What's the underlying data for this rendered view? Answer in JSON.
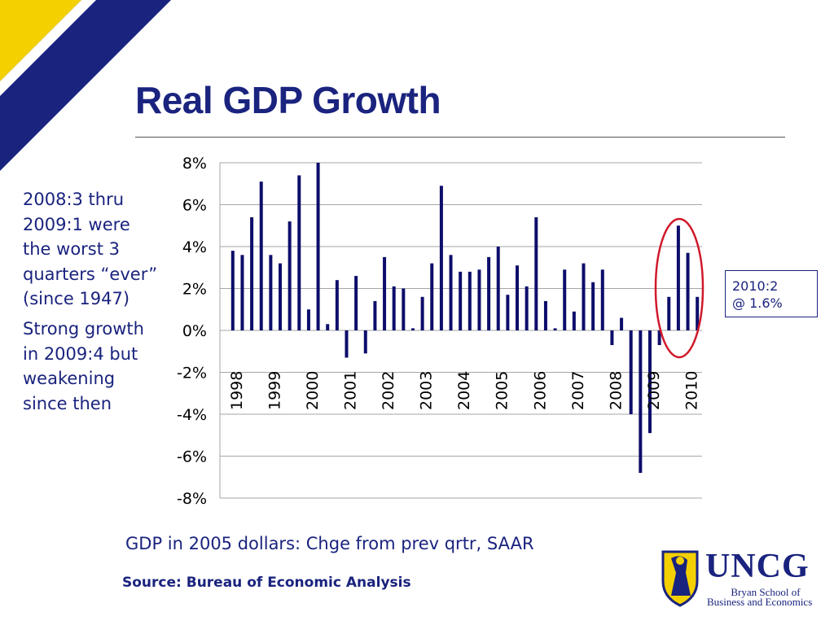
{
  "slide": {
    "title": "Real GDP Growth",
    "notes": [
      "2008:3 thru 2009:1 were the worst 3 quarters “ever” (since 1947)",
      "Strong growth in 2009:4 but weakening since then"
    ],
    "callout": [
      "2010:2",
      "@ 1.6%"
    ],
    "subtitle": "GDP in 2005 dollars: Chge from prev qrtr, SAAR",
    "source": "Source:  Bureau of Economic Analysis",
    "logo": {
      "name": "UNCG",
      "school_line1": "Bryan School of",
      "school_line2": "Business and Economics"
    },
    "colors": {
      "navy": "#1a237e",
      "gold": "#f5d000",
      "bar": "#0d0d6b",
      "highlight": "#d0192b",
      "grid": "#a6a6a6"
    }
  },
  "chart_data": {
    "type": "bar",
    "title": "",
    "xlabel": "",
    "ylabel": "",
    "ylim": [
      -8,
      8
    ],
    "yticks": [
      8,
      6,
      4,
      2,
      0,
      -2,
      -4,
      -6,
      -8
    ],
    "ytick_labels": [
      "8%",
      "6%",
      "4%",
      "2%",
      "0%",
      "-2%",
      "-4%",
      "-6%",
      "-8%"
    ],
    "grid": true,
    "year_labels": [
      "1998",
      "1999",
      "2000",
      "2001",
      "2002",
      "2003",
      "2004",
      "2005",
      "2006",
      "2007",
      "2008",
      "2009",
      "2010"
    ],
    "categories": [
      "1998:1",
      "1998:2",
      "1998:3",
      "1998:4",
      "1999:1",
      "1999:2",
      "1999:3",
      "1999:4",
      "2000:1",
      "2000:2",
      "2000:3",
      "2000:4",
      "2001:1",
      "2001:2",
      "2001:3",
      "2001:4",
      "2002:1",
      "2002:2",
      "2002:3",
      "2002:4",
      "2003:1",
      "2003:2",
      "2003:3",
      "2003:4",
      "2004:1",
      "2004:2",
      "2004:3",
      "2004:4",
      "2005:1",
      "2005:2",
      "2005:3",
      "2005:4",
      "2006:1",
      "2006:2",
      "2006:3",
      "2006:4",
      "2007:1",
      "2007:2",
      "2007:3",
      "2007:4",
      "2008:1",
      "2008:2",
      "2008:3",
      "2008:4",
      "2009:1",
      "2009:2",
      "2009:3",
      "2009:4",
      "2010:1",
      "2010:2"
    ],
    "values": [
      3.8,
      3.6,
      5.4,
      7.1,
      3.6,
      3.2,
      5.2,
      7.4,
      1.0,
      8.0,
      0.3,
      2.4,
      -1.3,
      2.6,
      -1.1,
      1.4,
      3.5,
      2.1,
      2.0,
      0.1,
      1.6,
      3.2,
      6.9,
      3.6,
      2.8,
      2.8,
      2.9,
      3.5,
      4.0,
      1.7,
      3.1,
      2.1,
      5.4,
      1.4,
      0.1,
      2.9,
      0.9,
      3.2,
      2.3,
      2.9,
      -0.7,
      0.6,
      -4.0,
      -6.8,
      -4.9,
      -0.7,
      1.6,
      5.0,
      3.7,
      1.6
    ],
    "highlight": [
      "2009:4",
      "2010:1",
      "2010:2"
    ]
  }
}
